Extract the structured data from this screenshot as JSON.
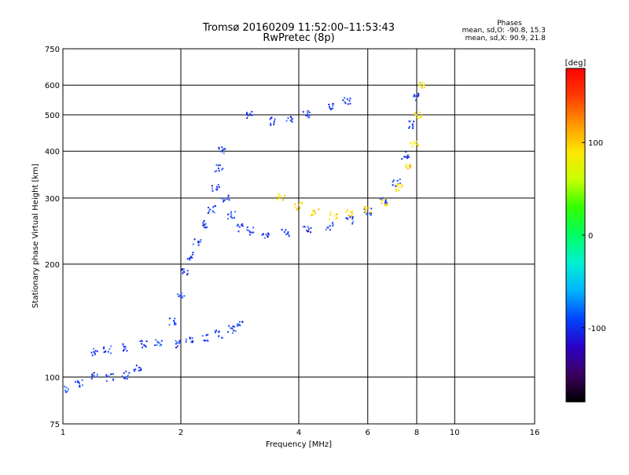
{
  "header": {
    "title": "Tromsø 20160209 11:52:00–11:53:43",
    "subtitle": "RwPretec (8p)",
    "stats_title": "Phases",
    "stats_o": "mean, sd,O: -90.8, 15.3",
    "stats_x": "mean, sd,X:  90.9, 21.8"
  },
  "chart_data": {
    "type": "scatter",
    "xlabel": "Frequency [MHz]",
    "ylabel": "Stationary phase Virtual Height [km]",
    "x_scale": "log",
    "y_scale": "log",
    "xlim": [
      1,
      16
    ],
    "ylim": [
      75,
      750
    ],
    "x_ticks": [
      1,
      2,
      4,
      6,
      8,
      10,
      16
    ],
    "x_tick_labels": [
      "1",
      "2",
      "4",
      "6",
      "8",
      "10",
      "16"
    ],
    "y_ticks": [
      75,
      100,
      200,
      300,
      400,
      500,
      600,
      750
    ],
    "y_tick_labels": [
      "75",
      "100",
      "200",
      "300",
      "400",
      "500",
      "600",
      "750"
    ],
    "grid": true,
    "colorbar": {
      "label": "[deg]",
      "range": [
        -180,
        180
      ],
      "ticks": [
        100,
        0,
        -100
      ],
      "tick_labels": [
        "100",
        "0",
        "-100"
      ],
      "colors": [
        "#000000",
        "#3c0060",
        "#2a00c8",
        "#0046ff",
        "#00b4ff",
        "#00f0d2",
        "#00ff64",
        "#32ff00",
        "#c8ff00",
        "#ffe600",
        "#ff9600",
        "#ff3c00",
        "#ff0000"
      ]
    },
    "series": [
      {
        "type": "cluster",
        "points": [
          {
            "f": 1.02,
            "h": 93
          },
          {
            "f": 1.1,
            "h": 96
          },
          {
            "f": 1.2,
            "h": 101
          },
          {
            "f": 1.32,
            "h": 100
          },
          {
            "f": 1.45,
            "h": 101
          },
          {
            "f": 1.55,
            "h": 106
          },
          {
            "f": 1.2,
            "h": 117
          },
          {
            "f": 1.3,
            "h": 118
          },
          {
            "f": 1.45,
            "h": 120
          },
          {
            "f": 1.6,
            "h": 122
          },
          {
            "f": 1.75,
            "h": 124
          },
          {
            "f": 1.95,
            "h": 122
          },
          {
            "f": 2.1,
            "h": 125
          },
          {
            "f": 2.3,
            "h": 127
          },
          {
            "f": 2.5,
            "h": 130
          },
          {
            "f": 2.7,
            "h": 134
          },
          {
            "f": 2.85,
            "h": 140
          },
          {
            "f": 1.9,
            "h": 140
          },
          {
            "f": 2.0,
            "h": 165
          },
          {
            "f": 2.05,
            "h": 190
          },
          {
            "f": 2.1,
            "h": 210
          },
          {
            "f": 2.2,
            "h": 230
          },
          {
            "f": 2.3,
            "h": 255
          },
          {
            "f": 2.4,
            "h": 280
          },
          {
            "f": 2.45,
            "h": 320
          },
          {
            "f": 2.5,
            "h": 360
          },
          {
            "f": 2.55,
            "h": 400
          },
          {
            "f": 2.6,
            "h": 300
          },
          {
            "f": 2.7,
            "h": 270
          },
          {
            "f": 2.85,
            "h": 250
          },
          {
            "f": 3.0,
            "h": 245
          },
          {
            "f": 3.3,
            "h": 240
          },
          {
            "f": 3.7,
            "h": 242
          },
          {
            "f": 4.2,
            "h": 246
          },
          {
            "f": 4.8,
            "h": 252
          },
          {
            "f": 5.4,
            "h": 262
          },
          {
            "f": 6.0,
            "h": 275
          },
          {
            "f": 6.6,
            "h": 295
          },
          {
            "f": 7.1,
            "h": 330
          },
          {
            "f": 7.5,
            "h": 390
          },
          {
            "f": 7.8,
            "h": 470
          },
          {
            "f": 7.95,
            "h": 560
          },
          {
            "f": 3.0,
            "h": 500
          },
          {
            "f": 3.4,
            "h": 480
          },
          {
            "f": 3.8,
            "h": 490
          },
          {
            "f": 4.2,
            "h": 500
          },
          {
            "f": 4.8,
            "h": 525
          },
          {
            "f": 5.3,
            "h": 545
          }
        ]
      },
      {
        "type": "cluster",
        "points": [
          {
            "f": 3.6,
            "h": 300
          },
          {
            "f": 4.0,
            "h": 285
          },
          {
            "f": 4.4,
            "h": 275
          },
          {
            "f": 4.9,
            "h": 270
          },
          {
            "f": 5.4,
            "h": 272
          },
          {
            "f": 6.0,
            "h": 278
          },
          {
            "f": 6.6,
            "h": 292
          },
          {
            "f": 7.2,
            "h": 320
          },
          {
            "f": 7.6,
            "h": 360
          },
          {
            "f": 7.9,
            "h": 420
          },
          {
            "f": 8.1,
            "h": 500
          },
          {
            "f": 8.2,
            "h": 600
          }
        ]
      }
    ]
  }
}
